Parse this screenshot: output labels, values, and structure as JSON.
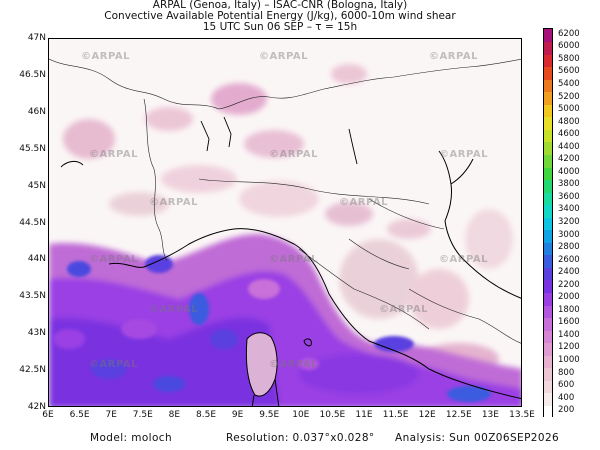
{
  "header": {
    "line1": "ARPAL (Genoa, Italy)  –  ISAC-CNR (Bologna, Italy)",
    "line2": "Convective Available Potential Energy (J/kg), 6000-10m wind shear",
    "line3": "15 UTC Sun 06 SEP  –  τ = 15h"
  },
  "map": {
    "lat_labels": [
      "47N",
      "46.5N",
      "46N",
      "45.5N",
      "45N",
      "44.5N",
      "44N",
      "43.5N",
      "43N",
      "42.5N",
      "42N"
    ],
    "lon_labels": [
      "6E",
      "6.5E",
      "7E",
      "7.5E",
      "8E",
      "8.5E",
      "9E",
      "9.5E",
      "10E",
      "10.5E",
      "11E",
      "11.5E",
      "12E",
      "12.5E",
      "13E",
      "13.5E"
    ],
    "lat_range": [
      42,
      47
    ],
    "lon_range": [
      6,
      13.5
    ],
    "watermark_text": "©ARPAL"
  },
  "colorbar": {
    "levels": [
      "200",
      "400",
      "600",
      "800",
      "1000",
      "1200",
      "1400",
      "1600",
      "1800",
      "2000",
      "2200",
      "2400",
      "2600",
      "2800",
      "3000",
      "3200",
      "3400",
      "3600",
      "3800",
      "4000",
      "4200",
      "4400",
      "4600",
      "4800",
      "5000",
      "5200",
      "5400",
      "5600",
      "5800",
      "6000",
      "6200"
    ],
    "colors": [
      "#ffffff",
      "#f7ecec",
      "#f0d8dc",
      "#ebc7d3",
      "#e6b2cf",
      "#de9cd0",
      "#d585d4",
      "#c96fd9",
      "#b356e0",
      "#9a3fe4",
      "#7a33e3",
      "#5a40e0",
      "#3a5cdf",
      "#207fdf",
      "#10a4e4",
      "#10c4e4",
      "#12d8c8",
      "#1adca0",
      "#22d870",
      "#40d640",
      "#70d838",
      "#a0dc30",
      "#c8e028",
      "#e8e028",
      "#f0c820",
      "#f0a020",
      "#ec7820",
      "#e84a20",
      "#d82a30",
      "#c01c50",
      "#a8107a"
    ]
  },
  "footer": {
    "model": "Model: moloch",
    "resolution": "Resolution: 0.037°x0.028°",
    "analysis": "Analysis: Sun 00Z06SEP2026"
  }
}
